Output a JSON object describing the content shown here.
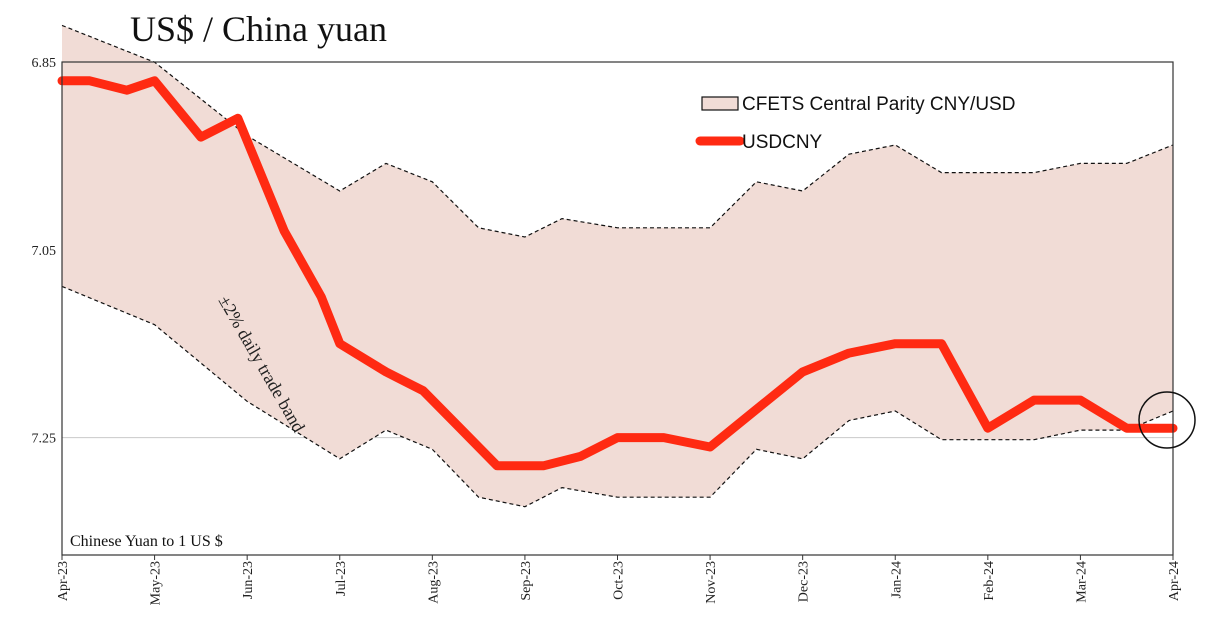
{
  "title": "US$ / China yuan",
  "chart_data": {
    "type": "line",
    "title": "US$ / China yuan",
    "y_inverted": true,
    "ylim": [
      6.85,
      7.375
    ],
    "y_ticks": [
      "6.85",
      "7.05",
      "7.25"
    ],
    "y_tick_values": [
      6.85,
      7.05,
      7.25
    ],
    "x_ticks": [
      "Apr-23",
      "May-23",
      "Jun-23",
      "Jul-23",
      "Aug-23",
      "Sep-23",
      "Oct-23",
      "Nov-23",
      "Dec-23",
      "Jan-24",
      "Feb-24",
      "Mar-24",
      "Apr-24"
    ],
    "grid": "horizontal",
    "legend_position": "top-right",
    "unit_label": "Chinese Yuan to 1 US $",
    "band_annotation": "±2% daily trade band",
    "legend": {
      "band": "CFETS Central Parity CNY/USD",
      "line": "USDCNY"
    },
    "colors": {
      "line": "#ff2a12",
      "band_fill": "#f1dcd6",
      "band_edge": "#111111",
      "grid": "#c9c9c9"
    },
    "series": [
      {
        "name": "USDCNY",
        "x": [
          0,
          0.3,
          0.7,
          1,
          1.5,
          1.9,
          2.4,
          2.8,
          3,
          3.5,
          3.9,
          4.3,
          4.7,
          5.2,
          5.6,
          6,
          6.5,
          7,
          7.5,
          8,
          8.5,
          9,
          9.5,
          10,
          10.5,
          11,
          11.5,
          12
        ],
        "y": [
          6.87,
          6.87,
          6.88,
          6.87,
          6.93,
          6.91,
          7.03,
          7.1,
          7.15,
          7.18,
          7.2,
          7.24,
          7.28,
          7.28,
          7.27,
          7.25,
          7.25,
          7.26,
          7.22,
          7.18,
          7.16,
          7.15,
          7.15,
          7.24,
          7.21,
          7.21,
          7.24,
          7.24
        ]
      },
      {
        "name": "CFETS Central Parity CNY/USD",
        "x": [
          0,
          1,
          2,
          3,
          3.5,
          4,
          4.5,
          5,
          5.4,
          6,
          6.5,
          7,
          7.5,
          8,
          8.5,
          9,
          9.5,
          10,
          10.5,
          11,
          11.5,
          12
        ],
        "y": [
          6.95,
          6.99,
          7.07,
          7.13,
          7.1,
          7.12,
          7.17,
          7.18,
          7.16,
          7.17,
          7.17,
          7.17,
          7.12,
          7.13,
          7.09,
          7.08,
          7.11,
          7.11,
          7.11,
          7.1,
          7.1,
          7.08
        ]
      }
    ]
  }
}
